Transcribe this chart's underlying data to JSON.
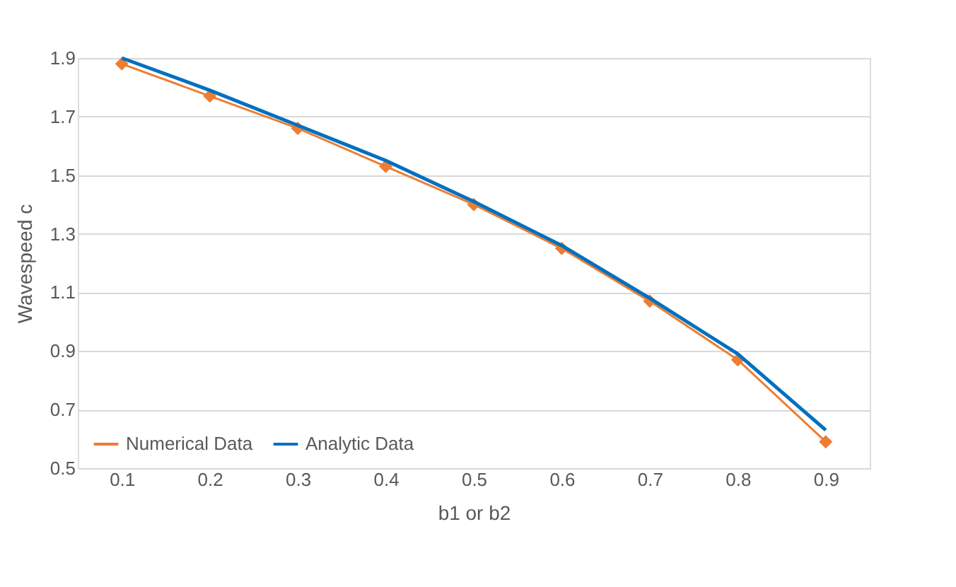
{
  "chart_data": {
    "type": "line",
    "xlabel": "b1 or b2",
    "ylabel": "Wavespeed c",
    "categories": [
      "0.1",
      "0.2",
      "0.3",
      "0.4",
      "0.5",
      "0.6",
      "0.7",
      "0.8",
      "0.9"
    ],
    "series": [
      {
        "name": "Numerical Data",
        "color": "#ed7d31",
        "marker": "diamond",
        "values": [
          1.88,
          1.77,
          1.66,
          1.53,
          1.4,
          1.25,
          1.07,
          0.87,
          0.59
        ]
      },
      {
        "name": "Analytic Data",
        "color": "#0070c0",
        "marker": "none",
        "values": [
          1.9,
          1.79,
          1.67,
          1.55,
          1.41,
          1.26,
          1.08,
          0.89,
          0.63
        ]
      }
    ],
    "ylim": [
      0.5,
      1.9
    ],
    "yticks": [
      0.5,
      0.7,
      0.9,
      1.1,
      1.3,
      1.5,
      1.7,
      1.9
    ],
    "grid": "y",
    "legend": "bottom left"
  }
}
